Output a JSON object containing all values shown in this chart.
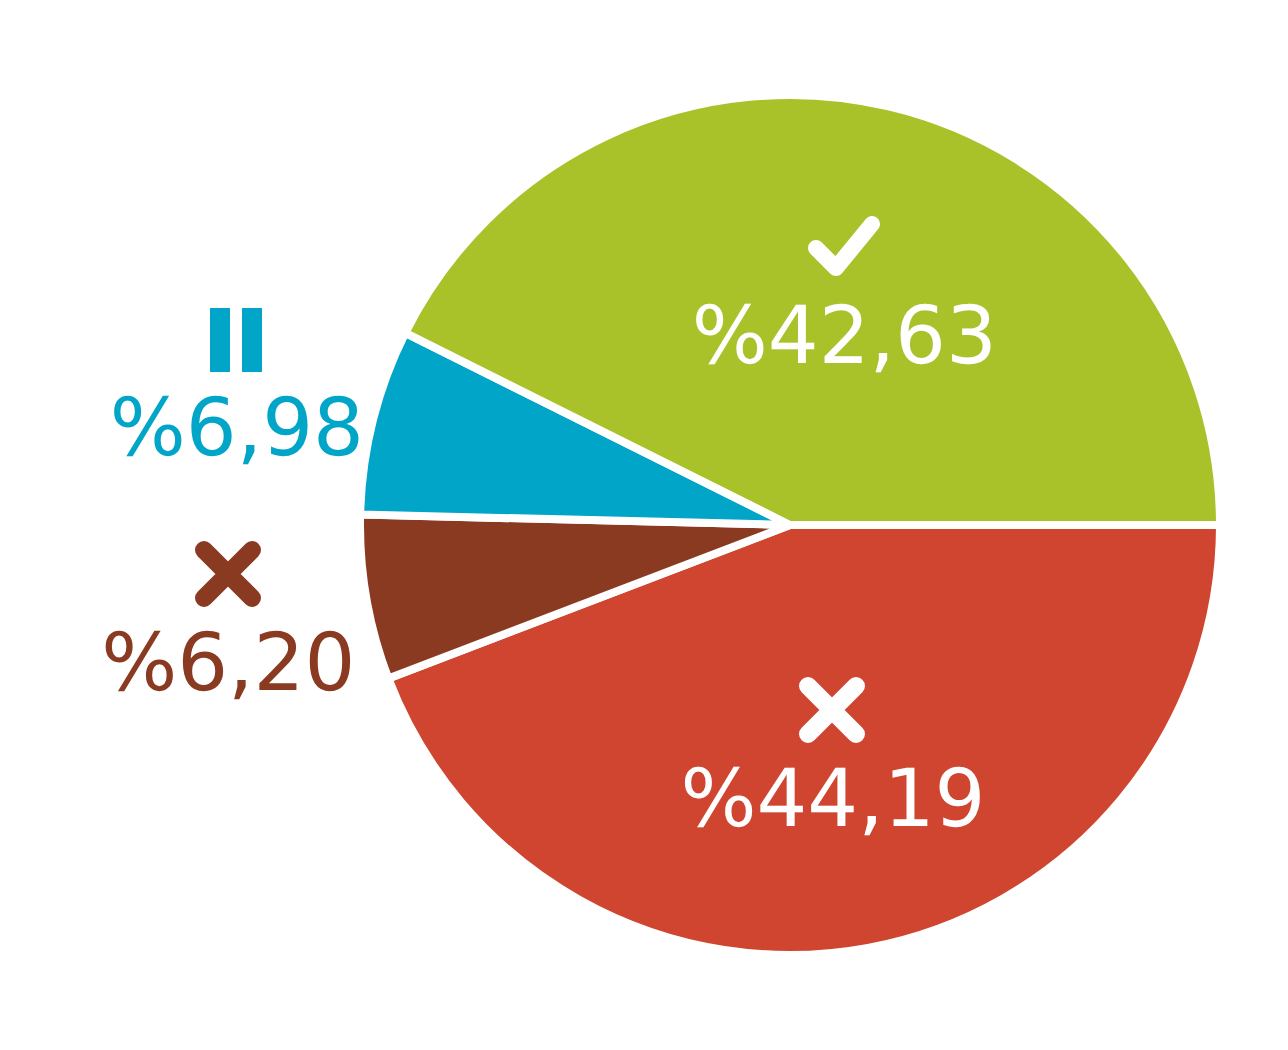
{
  "chart_data": {
    "type": "pie",
    "categories": [
      null,
      null,
      null,
      null
    ],
    "values": [
      44.19,
      6.2,
      6.98,
      42.63
    ],
    "value_labels": [
      "%44,19",
      "%6,20",
      "%6,98",
      "%42,63"
    ],
    "colors": [
      "#d04530",
      "#8b3a22",
      "#00a5c8",
      "#a9c22a"
    ]
  }
}
